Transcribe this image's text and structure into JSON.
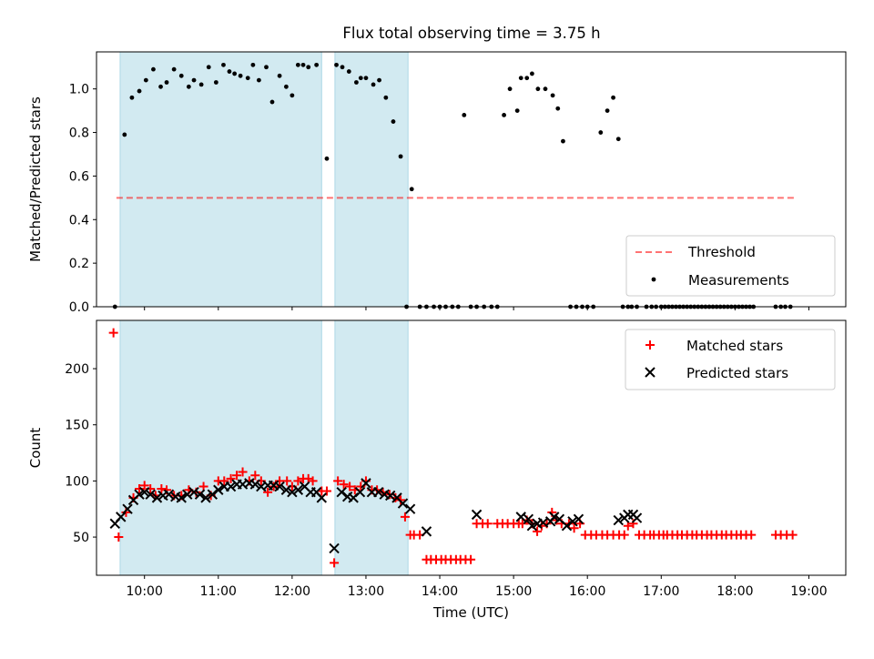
{
  "title": "Flux total observing time = 3.75 h",
  "colors": {
    "band": "#add8e6",
    "threshold": "#ff0000",
    "matched": "#ff0000",
    "predicted": "#000000",
    "measure": "#000000"
  },
  "chart_data": [
    {
      "type": "scatter",
      "name": "ratio-panel",
      "ylabel": "Matched/Predicted stars",
      "xlim": [
        9.35,
        19.5
      ],
      "ylim": [
        0,
        1.17
      ],
      "yticks": [
        0.0,
        0.2,
        0.4,
        0.6,
        0.8,
        1.0
      ],
      "ytick_labels": [
        "0.0",
        "0.2",
        "0.4",
        "0.6",
        "0.8",
        "1.0"
      ],
      "shaded_bands": [
        [
          9.67,
          12.4
        ],
        [
          12.58,
          13.57
        ]
      ],
      "threshold": {
        "name": "Threshold",
        "value": 0.5,
        "x": [
          9.62,
          18.83
        ]
      },
      "legend_position": "lower right",
      "legend": [
        "Threshold",
        "Measurements"
      ],
      "series": [
        {
          "name": "Measurements",
          "x": [
            9.6,
            9.73,
            9.83,
            9.93,
            10.02,
            10.12,
            10.22,
            10.3,
            10.4,
            10.5,
            10.6,
            10.67,
            10.77,
            10.87,
            10.97,
            11.07,
            11.15,
            11.22,
            11.3,
            11.4,
            11.47,
            11.55,
            11.65,
            11.73,
            11.83,
            11.92,
            12.0,
            12.08,
            12.15,
            12.22,
            12.33,
            12.47,
            12.6,
            12.68,
            12.77,
            12.87,
            12.93,
            13.0,
            13.1,
            13.18,
            13.27,
            13.37,
            13.47,
            13.55,
            13.62,
            13.73,
            13.82,
            13.92,
            14.0,
            14.08,
            14.17,
            14.25,
            14.33,
            14.42,
            14.5,
            14.6,
            14.7,
            14.78,
            14.87,
            14.95,
            15.05,
            15.1,
            15.18,
            15.25,
            15.33,
            15.43,
            15.53,
            15.6,
            15.67,
            15.77,
            15.85,
            15.93,
            16.0,
            16.08,
            16.18,
            16.27,
            16.35,
            16.42,
            16.48,
            16.55,
            16.6,
            16.67,
            16.8,
            16.87,
            16.93,
            17.0,
            17.05,
            17.1,
            17.15,
            17.2,
            17.25,
            17.3,
            17.35,
            17.4,
            17.45,
            17.5,
            17.55,
            17.6,
            17.65,
            17.7,
            17.75,
            17.8,
            17.85,
            17.9,
            17.95,
            18.0,
            18.05,
            18.1,
            18.15,
            18.2,
            18.25,
            18.55,
            18.62,
            18.68,
            18.75
          ],
          "y": [
            0.0,
            0.79,
            0.96,
            0.99,
            1.04,
            1.09,
            1.01,
            1.03,
            1.09,
            1.06,
            1.01,
            1.04,
            1.02,
            1.1,
            1.03,
            1.11,
            1.08,
            1.07,
            1.06,
            1.05,
            1.11,
            1.04,
            1.1,
            0.94,
            1.06,
            1.01,
            0.97,
            1.11,
            1.11,
            1.1,
            1.11,
            0.68,
            1.11,
            1.1,
            1.08,
            1.03,
            1.05,
            1.05,
            1.02,
            1.04,
            0.96,
            0.85,
            0.69,
            0.0,
            0.54,
            0.0,
            0.0,
            0.0,
            0.0,
            0.0,
            0.0,
            0.0,
            0.88,
            0.0,
            0.0,
            0.0,
            0.0,
            0.0,
            0.88,
            1.0,
            0.9,
            1.05,
            1.05,
            1.07,
            1.0,
            1.0,
            0.97,
            0.91,
            0.76,
            0.0,
            0.0,
            0.0,
            0.0,
            0.0,
            0.8,
            0.9,
            0.96,
            0.77,
            0.0,
            0.0,
            0.0,
            0.0,
            0.0,
            0.0,
            0.0,
            0.0,
            0.0,
            0.0,
            0.0,
            0.0,
            0.0,
            0.0,
            0.0,
            0.0,
            0.0,
            0.0,
            0.0,
            0.0,
            0.0,
            0.0,
            0.0,
            0.0,
            0.0,
            0.0,
            0.0,
            0.0,
            0.0,
            0.0,
            0.0,
            0.0,
            0.0,
            0.0,
            0.0,
            0.0,
            0.0
          ]
        }
      ]
    },
    {
      "type": "scatter",
      "name": "count-panel",
      "xlabel": "Time (UTC)",
      "ylabel": "Count",
      "xlim": [
        9.35,
        19.5
      ],
      "ylim": [
        16,
        243
      ],
      "yticks": [
        50,
        100,
        150,
        200
      ],
      "ytick_labels": [
        "50",
        "100",
        "150",
        "200"
      ],
      "xticks": [
        10,
        11,
        12,
        13,
        14,
        15,
        16,
        17,
        18,
        19
      ],
      "xtick_labels": [
        "10:00",
        "11:00",
        "12:00",
        "13:00",
        "14:00",
        "15:00",
        "16:00",
        "17:00",
        "18:00",
        "19:00"
      ],
      "shaded_bands": [
        [
          9.67,
          12.4
        ],
        [
          12.58,
          13.57
        ]
      ],
      "legend_position": "upper right",
      "legend": [
        "Matched stars",
        "Predicted stars"
      ],
      "series": [
        {
          "name": "Matched stars",
          "marker": "+",
          "x": [
            9.58,
            9.65,
            9.75,
            9.85,
            9.93,
            10.0,
            10.08,
            10.15,
            10.23,
            10.3,
            10.4,
            10.5,
            10.6,
            10.7,
            10.8,
            10.9,
            11.0,
            11.08,
            11.17,
            11.25,
            11.33,
            11.42,
            11.5,
            11.58,
            11.67,
            11.75,
            11.83,
            11.93,
            12.0,
            12.08,
            12.15,
            12.22,
            12.28,
            12.4,
            12.47,
            12.57,
            12.62,
            12.7,
            12.78,
            12.85,
            12.93,
            13.0,
            13.08,
            13.15,
            13.23,
            13.32,
            13.4,
            13.47,
            13.53,
            13.6,
            13.65,
            13.73,
            13.82,
            13.88,
            13.95,
            14.02,
            14.08,
            14.15,
            14.22,
            14.28,
            14.35,
            14.42,
            14.5,
            14.58,
            14.65,
            14.78,
            14.85,
            14.92,
            15.0,
            15.07,
            15.12,
            15.18,
            15.25,
            15.32,
            15.38,
            15.45,
            15.52,
            15.58,
            15.65,
            15.75,
            15.82,
            15.9,
            15.97,
            16.05,
            16.12,
            16.2,
            16.27,
            16.35,
            16.43,
            16.5,
            16.55,
            16.62,
            16.7,
            16.77,
            16.85,
            16.9,
            16.97,
            17.03,
            17.08,
            17.15,
            17.22,
            17.28,
            17.35,
            17.42,
            17.48,
            17.55,
            17.62,
            17.68,
            17.75,
            17.82,
            17.88,
            17.95,
            18.02,
            18.08,
            18.15,
            18.22,
            18.55,
            18.62,
            18.7,
            18.78
          ],
          "y": [
            232,
            50,
            72,
            85,
            93,
            96,
            93,
            87,
            93,
            92,
            87,
            87,
            92,
            90,
            95,
            87,
            100,
            100,
            102,
            105,
            108,
            100,
            105,
            100,
            90,
            95,
            100,
            100,
            95,
            100,
            102,
            102,
            100,
            91,
            91,
            27,
            100,
            97,
            95,
            92,
            95,
            100,
            92,
            92,
            90,
            88,
            85,
            83,
            68,
            52,
            52,
            52,
            30,
            30,
            30,
            30,
            30,
            30,
            30,
            30,
            30,
            30,
            62,
            62,
            62,
            62,
            62,
            62,
            62,
            62,
            62,
            65,
            62,
            55,
            60,
            62,
            72,
            65,
            62,
            62,
            58,
            62,
            52,
            52,
            52,
            52,
            52,
            52,
            52,
            52,
            60,
            62,
            52,
            52,
            52,
            52,
            52,
            52,
            52,
            52,
            52,
            52,
            52,
            52,
            52,
            52,
            52,
            52,
            52,
            52,
            52,
            52,
            52,
            52,
            52,
            52,
            52,
            52,
            52,
            52
          ]
        },
        {
          "name": "Predicted stars",
          "marker": "x",
          "x": [
            9.6,
            9.68,
            9.77,
            9.85,
            9.93,
            10.0,
            10.08,
            10.17,
            10.25,
            10.33,
            10.42,
            10.5,
            10.58,
            10.67,
            10.75,
            10.83,
            10.92,
            11.0,
            11.08,
            11.17,
            11.25,
            11.33,
            11.42,
            11.5,
            11.58,
            11.67,
            11.75,
            11.83,
            11.92,
            12.0,
            12.08,
            12.17,
            12.25,
            12.33,
            12.4,
            12.57,
            12.67,
            12.75,
            12.83,
            12.92,
            13.0,
            13.08,
            13.17,
            13.25,
            13.33,
            13.42,
            13.5,
            13.6,
            13.82,
            14.5,
            15.1,
            15.2,
            15.25,
            15.32,
            15.4,
            15.5,
            15.55,
            15.62,
            15.72,
            15.8,
            15.88,
            16.42,
            16.5,
            16.55,
            16.62,
            16.67
          ],
          "y": [
            62,
            68,
            75,
            83,
            88,
            90,
            88,
            85,
            87,
            88,
            86,
            85,
            88,
            90,
            88,
            85,
            88,
            92,
            95,
            95,
            97,
            97,
            98,
            97,
            95,
            96,
            96,
            95,
            92,
            90,
            92,
            95,
            90,
            90,
            85,
            40,
            90,
            86,
            85,
            90,
            98,
            90,
            90,
            88,
            87,
            85,
            80,
            75,
            55,
            70,
            68,
            66,
            60,
            62,
            63,
            64,
            68,
            66,
            60,
            64,
            66,
            65,
            67,
            70,
            70,
            67
          ]
        }
      ]
    }
  ]
}
